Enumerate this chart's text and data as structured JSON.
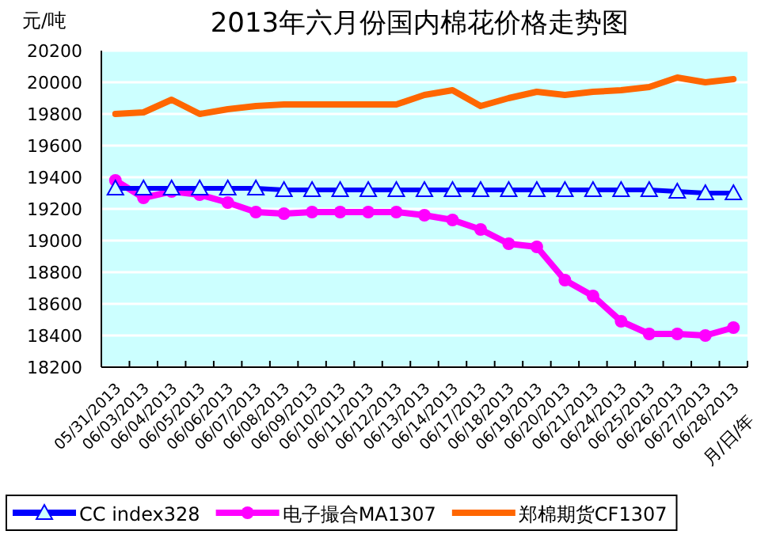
{
  "chart_data": {
    "type": "line",
    "title": "2013年六月份国内棉花价格走势图",
    "ylabel": "元/吨",
    "xlabel": "月/日/年",
    "categories": [
      "05/31/2013",
      "06/03/2013",
      "06/04/2013",
      "06/05/2013",
      "06/06/2013",
      "06/07/2013",
      "06/08/2013",
      "06/09/2013",
      "06/10/2013",
      "06/11/2013",
      "06/12/2013",
      "06/13/2013",
      "06/14/2013",
      "06/17/2013",
      "06/18/2013",
      "06/19/2013",
      "06/20/2013",
      "06/21/2013",
      "06/24/2013",
      "06/25/2013",
      "06/26/2013",
      "06/27/2013",
      "06/28/2013"
    ],
    "series": [
      {
        "name": "CC index328",
        "color": "#0000ff",
        "marker": "triangle",
        "values": [
          19330,
          19330,
          19330,
          19330,
          19330,
          19330,
          19320,
          19320,
          19320,
          19320,
          19320,
          19320,
          19320,
          19320,
          19320,
          19320,
          19320,
          19320,
          19320,
          19320,
          19310,
          19300,
          19300
        ]
      },
      {
        "name": "电子撮合MA1307",
        "color": "#ff00ff",
        "marker": "circle",
        "values": [
          19380,
          19270,
          19310,
          19290,
          19240,
          19180,
          19170,
          19180,
          19180,
          19180,
          19180,
          19160,
          19130,
          19070,
          18980,
          18960,
          18750,
          18650,
          18490,
          18410,
          18410,
          18400,
          18450
        ]
      },
      {
        "name": "郑棉期货CF1307",
        "color": "#ff6600",
        "marker": "none",
        "values": [
          19800,
          19810,
          19890,
          19800,
          19830,
          19850,
          19860,
          19860,
          19860,
          19860,
          19860,
          19920,
          19950,
          19850,
          19900,
          19940,
          19920,
          19940,
          19950,
          19970,
          20030,
          20000,
          20020
        ]
      }
    ],
    "ylim": [
      18200,
      20200
    ],
    "yticks": [
      18200,
      18400,
      18600,
      18800,
      19000,
      19200,
      19400,
      19600,
      19800,
      20000,
      20200
    ],
    "grid": "y",
    "legend": "bottom"
  }
}
